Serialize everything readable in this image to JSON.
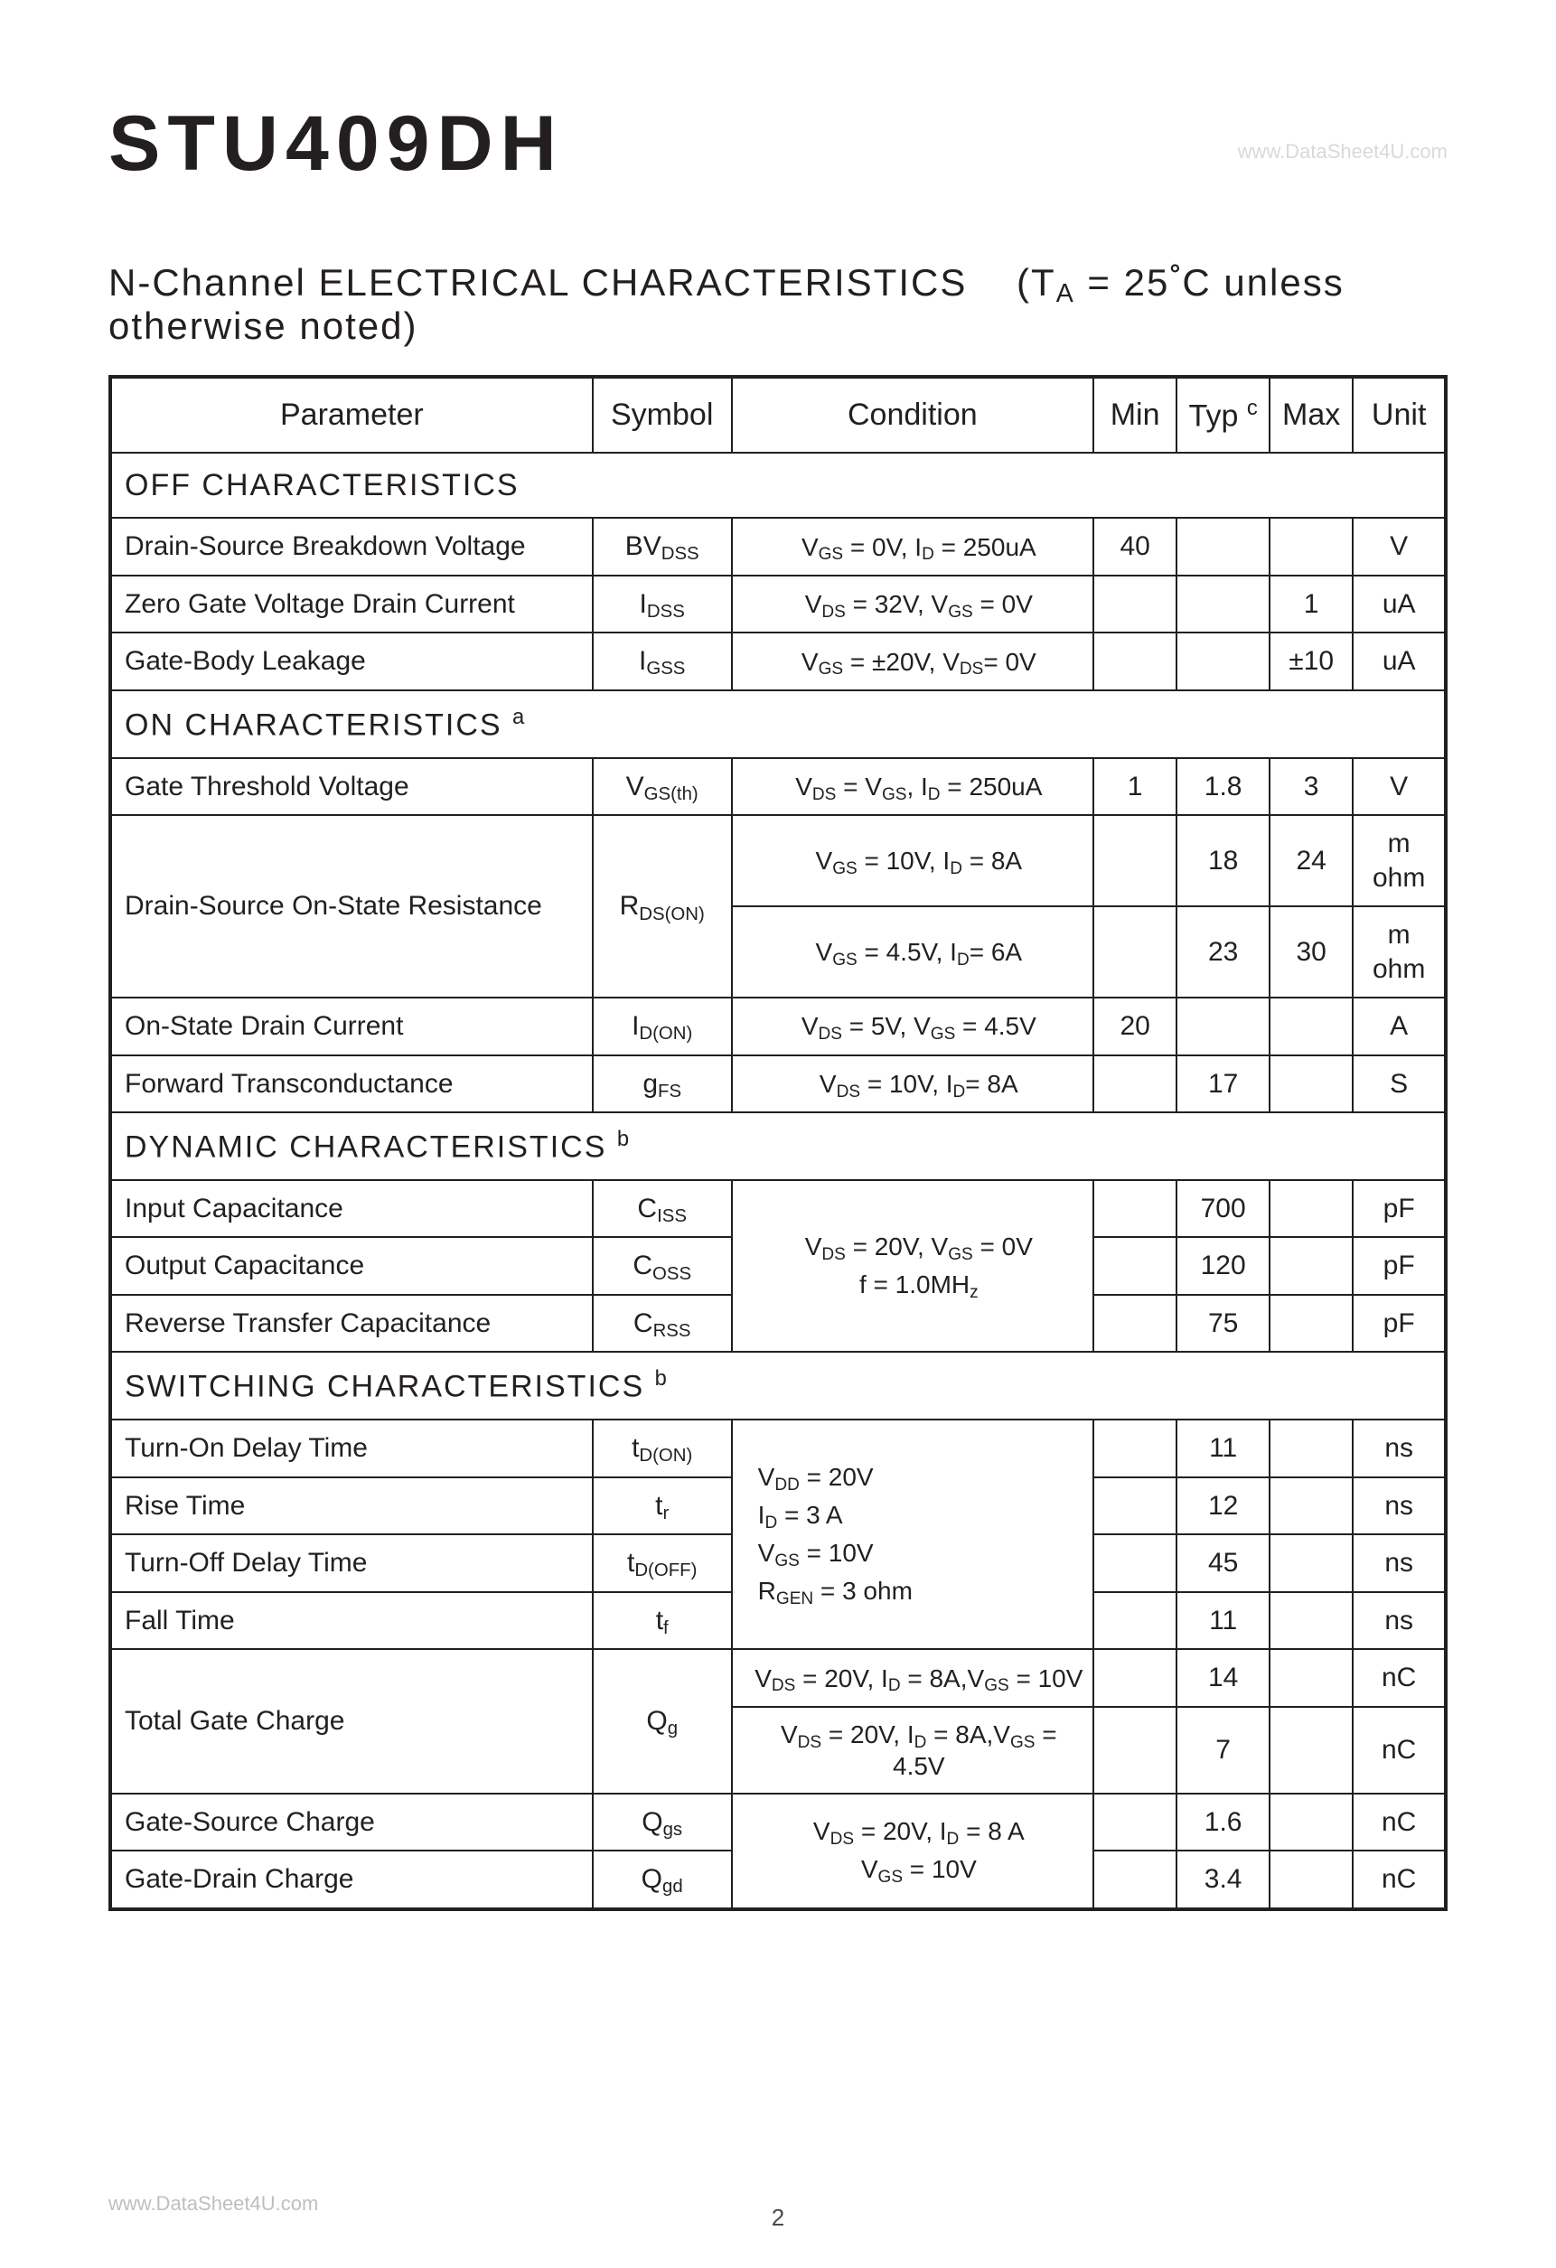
{
  "header": {
    "part_number": "STU409DH",
    "watermark": "www.DataSheet4U.com"
  },
  "title": {
    "main": "N-Channel  ELECTRICAL  CHARACTERISTICS",
    "cond_prefix": "(T",
    "cond_sub": "A",
    "cond_mid": " = 25",
    "cond_deg": "°",
    "cond_suffix": "C  unless  otherwise  noted)"
  },
  "columns": {
    "parameter": "Parameter",
    "symbol": "Symbol",
    "condition": "Condition",
    "min": "Min",
    "typ": "Typ",
    "typ_sup": "c",
    "max": "Max",
    "unit": "Unit"
  },
  "sections": {
    "off": "OFF CHARACTERISTICS",
    "on": "ON CHARACTERISTICS",
    "on_sup": "a",
    "dyn": "DYNAMIC CHARACTERISTICS",
    "dyn_sup": "b",
    "sw": "SWITCHING CHARACTERISTICS",
    "sw_sup": "b"
  },
  "rows": {
    "r1": {
      "param": "Drain-Source Breakdown Voltage",
      "sym": "BV",
      "symsub": "DSS",
      "cond": "VGS = 0V, ID = 250uA",
      "min": "40",
      "typ": "",
      "max": "",
      "unit": "V"
    },
    "r2": {
      "param": "Zero Gate Voltage Drain Current",
      "sym": "I",
      "symsub": "DSS",
      "cond": "VDS = 32V, VGS = 0V",
      "min": "",
      "typ": "",
      "max": "1",
      "unit": "uA"
    },
    "r3": {
      "param": "Gate-Body Leakage",
      "sym": "I",
      "symsub": "GSS",
      "cond": "VGS = ±20V, VDS= 0V",
      "min": "",
      "typ": "",
      "max": "±10",
      "unit": "uA"
    },
    "r4": {
      "param": "Gate Threshold Voltage",
      "sym": "V",
      "symsub": "GS(th)",
      "cond": "VDS = VGS, ID = 250uA",
      "min": "1",
      "typ": "1.8",
      "max": "3",
      "unit": "V"
    },
    "r5a": {
      "param": "Drain-Source On-State Resistance",
      "sym": "R",
      "symsub": "DS(ON)",
      "cond": "VGS = 10V, ID = 8A",
      "min": "",
      "typ": "18",
      "max": "24",
      "unit": "m ohm"
    },
    "r5b": {
      "cond": "VGS = 4.5V, ID= 6A",
      "min": "",
      "typ": "23",
      "max": "30",
      "unit": "m ohm"
    },
    "r6": {
      "param": "On-State Drain Current",
      "sym": "I",
      "symsub": "D(ON)",
      "cond": "VDS = 5V, VGS = 4.5V",
      "min": "20",
      "typ": "",
      "max": "",
      "unit": "A"
    },
    "r7": {
      "param": "Forward Transconductance",
      "sym": "g",
      "symsub": "FS",
      "cond": "VDS = 10V, ID=  8A",
      "min": "",
      "typ": "17",
      "max": "",
      "unit": "S"
    },
    "r8": {
      "param": "Input Capacitance",
      "sym": "C",
      "symsub": "ISS",
      "min": "",
      "typ": "700",
      "max": "",
      "unit": "pF"
    },
    "r9": {
      "param": "Output Capacitance",
      "sym": "C",
      "symsub": "OSS",
      "min": "",
      "typ": "120",
      "max": "",
      "unit": "pF"
    },
    "r10": {
      "param": "Reverse Transfer Capacitance",
      "sym": "C",
      "symsub": "RSS",
      "min": "",
      "typ": "75",
      "max": "",
      "unit": "pF"
    },
    "cond_cap_l1": "VDS = 20V, VGS = 0V",
    "cond_cap_l2": "f = 1.0MHz",
    "r11": {
      "param": "Turn-On Delay Time",
      "sym": "t",
      "symsub": "D(ON)",
      "min": "",
      "typ": "11",
      "max": "",
      "unit": "ns"
    },
    "r12": {
      "param": "Rise Time",
      "sym": "t",
      "symsub": "r",
      "min": "",
      "typ": "12",
      "max": "",
      "unit": "ns"
    },
    "r13": {
      "param": "Turn-Off Delay Time",
      "sym": "t",
      "symsub": "D(OFF)",
      "min": "",
      "typ": "45",
      "max": "",
      "unit": "ns"
    },
    "r14": {
      "param": "Fall Time",
      "sym": "t",
      "symsub": "f",
      "min": "",
      "typ": "11",
      "max": "",
      "unit": "ns"
    },
    "cond_sw_l1": "VDD = 20V",
    "cond_sw_l2": "ID = 3 A",
    "cond_sw_l3": "VGS = 10V",
    "cond_sw_l4": "RGEN = 3 ohm",
    "r15": {
      "param": "Total Gate Charge",
      "sym": "Q",
      "symsub": "g",
      "cond": "VDS = 20V, ID = 8A,VGS = 10V",
      "min": "",
      "typ": "14",
      "max": "",
      "unit": "nC"
    },
    "r16": {
      "cond": "VDS = 20V, ID = 8A,VGS = 4.5V",
      "min": "",
      "typ": "7",
      "max": "",
      "unit": "nC"
    },
    "r17": {
      "param": "Gate-Source Charge",
      "sym": "Q",
      "symsub": "gs",
      "min": "",
      "typ": "1.6",
      "max": "",
      "unit": "nC"
    },
    "r18": {
      "param": "Gate-Drain Charge",
      "sym": "Q",
      "symsub": "gd",
      "min": "",
      "typ": "3.4",
      "max": "",
      "unit": "nC"
    },
    "cond_q_l1": "VDS = 20V, ID = 8 A",
    "cond_q_l2": "VGS = 10V"
  },
  "page_number": "2",
  "bottom_watermark": "www.DataSheet4U.com"
}
